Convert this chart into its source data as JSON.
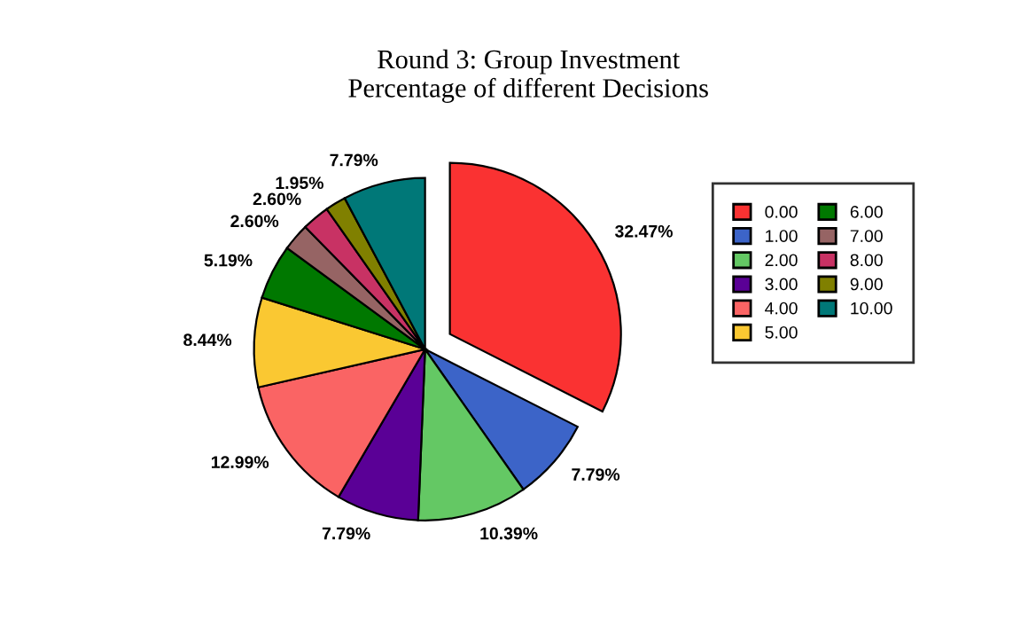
{
  "chart_data": {
    "type": "pie",
    "title": "Round 3: Group Investment\nPercentage of different Decisions",
    "categories": [
      "0.00",
      "1.00",
      "2.00",
      "3.00",
      "4.00",
      "5.00",
      "6.00",
      "7.00",
      "8.00",
      "9.00",
      "10.00"
    ],
    "values": [
      32.47,
      7.79,
      10.39,
      7.79,
      12.99,
      8.44,
      5.19,
      2.6,
      2.6,
      1.95,
      7.79
    ],
    "value_labels": [
      "32.47%",
      "7.79%",
      "10.39%",
      "7.79%",
      "12.99%",
      "8.44%",
      "5.19%",
      "2.60%",
      "2.60%",
      "1.95%",
      "7.79%"
    ],
    "colors": [
      "#fa3232",
      "#3c64c8",
      "#64c864",
      "#5a0096",
      "#fa6464",
      "#fac832",
      "#007800",
      "#966464",
      "#c83264",
      "#808000",
      "#007878"
    ],
    "legend": "right"
  }
}
